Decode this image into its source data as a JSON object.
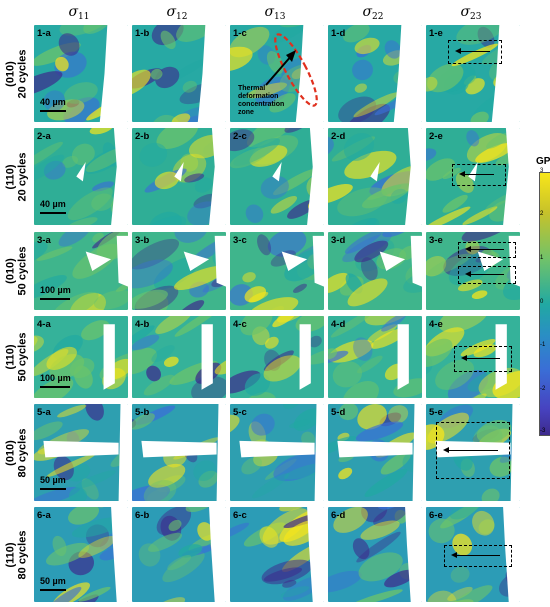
{
  "columns": [
    {
      "symbol": "σ",
      "sub": "11"
    },
    {
      "symbol": "σ",
      "sub": "12"
    },
    {
      "symbol": "σ",
      "sub": "13"
    },
    {
      "symbol": "σ",
      "sub": "22"
    },
    {
      "symbol": "σ",
      "sub": "23"
    }
  ],
  "rows": [
    {
      "orientation": "(010)",
      "cycles": "20 cycles",
      "scale": "40 µm",
      "labels": [
        "1-a",
        "1-b",
        "1-c",
        "1-d",
        "1-e"
      ],
      "bg": "#27a9a4"
    },
    {
      "orientation": "(110)",
      "cycles": "20 cycles",
      "scale": "40 µm",
      "labels": [
        "2-a",
        "2-b",
        "2-c",
        "2-d",
        "2-e"
      ],
      "bg": "#2fae96"
    },
    {
      "orientation": "(010)",
      "cycles": "50 cycles",
      "scale": "100 µm",
      "labels": [
        "3-a",
        "3-b",
        "3-c",
        "3-d",
        "3-e"
      ],
      "bg": "#3fb58c"
    },
    {
      "orientation": "(110)",
      "cycles": "50 cycles",
      "scale": "100 µm",
      "labels": [
        "4-a",
        "4-b",
        "4-c",
        "4-d",
        "4-e"
      ],
      "bg": "#35b29a"
    },
    {
      "orientation": "(010)",
      "cycles": "80 cycles",
      "scale": "50 µm",
      "labels": [
        "5-a",
        "5-b",
        "5-c",
        "5-d",
        "5-e"
      ],
      "bg": "#2e9fb0"
    },
    {
      "orientation": "(110)",
      "cycles": "80 cycles",
      "scale": "50 µm",
      "labels": [
        "6-a",
        "6-b",
        "6-c",
        "6-d",
        "6-e"
      ],
      "bg": "#2c9cb6"
    }
  ],
  "annotation": {
    "line1": "Thermal",
    "line2": "deformation",
    "line3": "concentration",
    "line4": "zone"
  },
  "colorbar": {
    "unit": "GPa",
    "ticks": [
      "3",
      "2",
      "1",
      "0",
      "-1",
      "-2",
      "-3"
    ]
  },
  "colors": {
    "yellow": "#f8e61a",
    "green": "#6cc46a",
    "teal": "#21a9a2",
    "blue": "#3a6ed6",
    "indigo": "#3d2a8c",
    "annotation_red": "#e0301e"
  }
}
